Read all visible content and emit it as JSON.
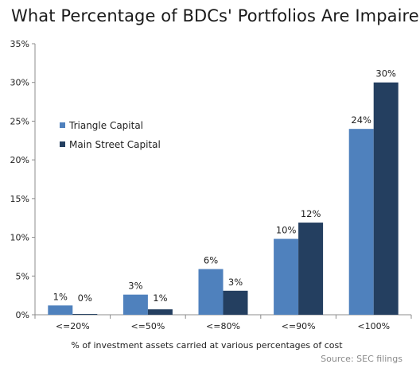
{
  "chart_data": {
    "type": "bar",
    "title": "What Percentage of BDCs' Portfolios Are Impaired?",
    "xlabel": "% of investment assets carried at various percentages of cost",
    "ylabel": "",
    "source": "Source: SEC filings",
    "categories": [
      "<=20%",
      "<=50%",
      "<=80%",
      "<=90%",
      "<100%"
    ],
    "ylim": [
      0,
      35
    ],
    "yticks": [
      0,
      5,
      10,
      15,
      20,
      25,
      30,
      35
    ],
    "ytick_labels": [
      "0%",
      "5%",
      "10%",
      "15%",
      "20%",
      "25%",
      "30%",
      "35%"
    ],
    "grid": false,
    "legend_placement": "top-left",
    "series": [
      {
        "name": "Triangle Capital",
        "color": "#4f81bd",
        "values": [
          1.2,
          2.6,
          5.9,
          9.8,
          24.0
        ],
        "labels": [
          "1%",
          "3%",
          "6%",
          "10%",
          "24%"
        ]
      },
      {
        "name": "Main Street Capital",
        "color": "#243f60",
        "values": [
          0.1,
          0.7,
          3.1,
          11.9,
          30.0
        ],
        "labels": [
          "0%",
          "1%",
          "3%",
          "12%",
          "30%"
        ]
      }
    ]
  }
}
